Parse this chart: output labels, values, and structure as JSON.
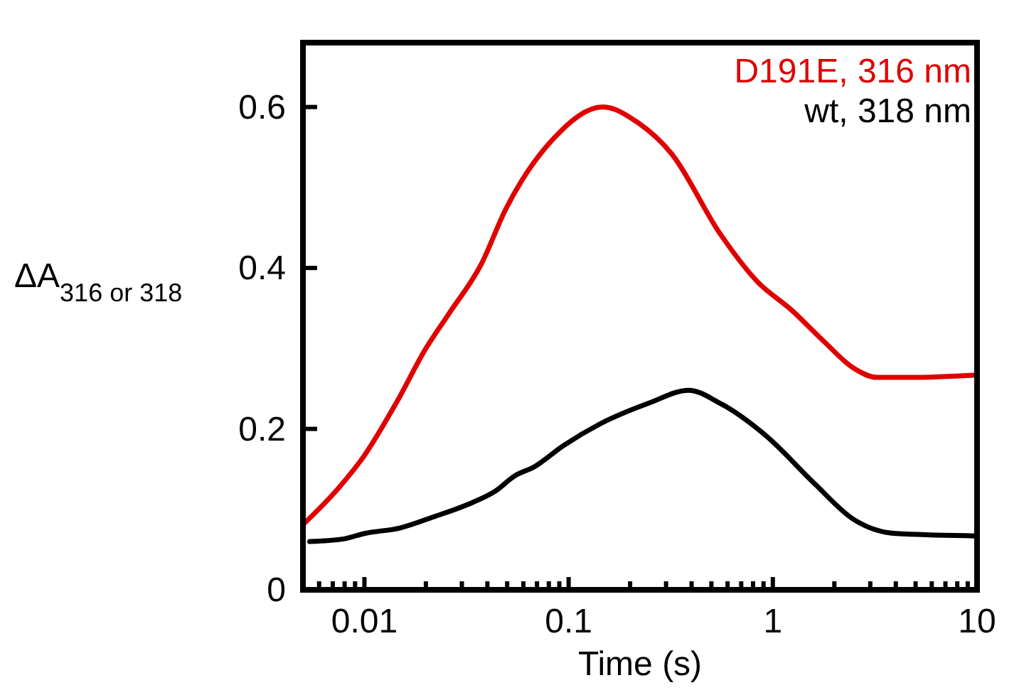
{
  "chart_data": {
    "type": "line",
    "xlabel": "Time (s)",
    "ylabel": "ΔA$_{316 or 318}$",
    "log": "x",
    "xlim": [
      0.005,
      10
    ],
    "xticks": [
      {
        "value": 0.006,
        "label": null
      },
      {
        "value": 0.007,
        "label": null
      },
      {
        "value": 0.008,
        "label": null
      },
      {
        "value": 0.009,
        "label": null
      },
      0.01,
      {
        "value": 0.02,
        "label": null
      },
      {
        "value": 0.03,
        "label": null
      },
      {
        "value": 0.04,
        "label": null
      },
      {
        "value": 0.05,
        "label": null
      },
      {
        "value": 0.06,
        "label": null
      },
      {
        "value": 0.07,
        "label": null
      },
      {
        "value": 0.08,
        "label": null
      },
      {
        "value": 0.09,
        "label": null
      },
      0.1,
      {
        "value": 0.2,
        "label": null
      },
      {
        "value": 0.3,
        "label": null
      },
      {
        "value": 0.4,
        "label": null
      },
      {
        "value": 0.5,
        "label": null
      },
      {
        "value": 0.6,
        "label": null
      },
      {
        "value": 0.7,
        "label": null
      },
      {
        "value": 0.8,
        "label": null
      },
      {
        "value": 0.9,
        "label": null
      },
      1,
      {
        "value": 2,
        "label": null
      },
      {
        "value": 3,
        "label": null
      },
      {
        "value": 4,
        "label": null
      },
      {
        "value": 5,
        "label": null
      },
      {
        "value": 6,
        "label": null
      },
      {
        "value": 7,
        "label": null
      },
      {
        "value": 8,
        "label": null
      },
      {
        "value": 9,
        "label": null
      },
      10
    ],
    "ylim": [
      0,
      0.68
    ],
    "yticks": [
      0,
      0.2,
      0.4,
      0.6
    ],
    "legend": "top right",
    "line_style": "solid",
    "marker": "none",
    "grid": false,
    "series": [
      {
        "name": "D191E, 316 nm",
        "color": "#e00000",
        "x": [
          0.005,
          0.0075,
          0.01,
          0.0143,
          0.02,
          0.0259,
          0.0374,
          0.049,
          0.0838,
          0.147,
          0.22,
          0.319,
          0.55,
          0.84,
          1.23,
          1.79,
          2.47,
          3.24,
          4.69,
          10
        ],
        "values": [
          0.081,
          0.127,
          0.167,
          0.232,
          0.3,
          0.343,
          0.405,
          0.472,
          0.56,
          0.6,
          0.58,
          0.542,
          0.443,
          0.383,
          0.348,
          0.308,
          0.276,
          0.264,
          0.264,
          0.267
        ]
      },
      {
        "name": "wt, 318 nm",
        "color": "#000000",
        "x": [
          0.0054,
          0.0078,
          0.01,
          0.015,
          0.022,
          0.032,
          0.044,
          0.054,
          0.068,
          0.094,
          0.142,
          0.247,
          0.387,
          0.55,
          0.94,
          1.6,
          2.47,
          4.0,
          10
        ],
        "values": [
          0.06,
          0.063,
          0.07,
          0.077,
          0.091,
          0.106,
          0.123,
          0.141,
          0.153,
          0.179,
          0.206,
          0.232,
          0.248,
          0.232,
          0.19,
          0.132,
          0.088,
          0.07,
          0.067
        ]
      }
    ]
  }
}
